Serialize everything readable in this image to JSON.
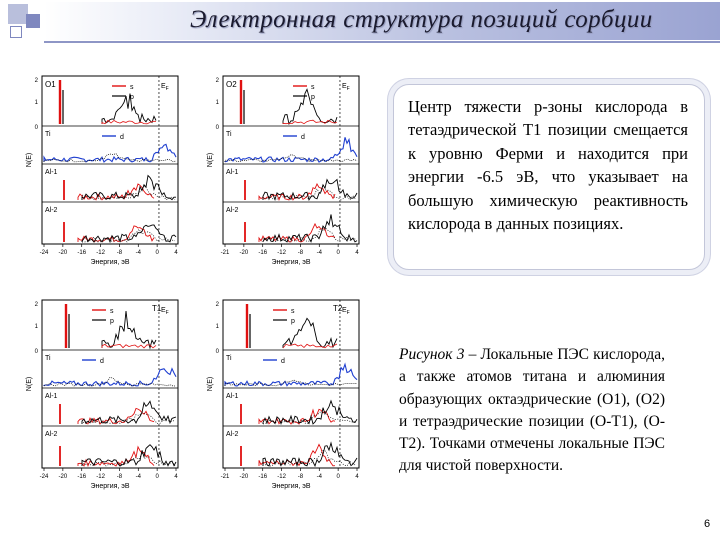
{
  "header": {
    "title": "Электронная структура позиций сорбции"
  },
  "panel_labels": {
    "dos_axis": "N(E)",
    "energy_axis": "Энергия, эВ",
    "legend_s": "s",
    "legend_p": "p",
    "legend_d": "d",
    "fermi": "E",
    "fermi_sub": "F",
    "ti": "Ti",
    "al1": "Al-1",
    "al2": "Al-2",
    "y_two": "2",
    "y_one": "1",
    "y_zero": "0",
    "xticks_a": [
      "-24",
      "-20",
      "-16",
      "-12",
      "-8",
      "-4",
      "0",
      "4"
    ],
    "xticks_b": [
      "-21",
      "-20",
      "-16",
      "-12",
      "-8",
      "-4",
      "0",
      "4"
    ]
  },
  "panels": [
    {
      "id": "o1",
      "site_label": "O1",
      "label_side": "left"
    },
    {
      "id": "o2",
      "site_label": "O2",
      "label_side": "left"
    },
    {
      "id": "t1",
      "site_label": "T1",
      "label_side": "right"
    },
    {
      "id": "t2",
      "site_label": "T2",
      "label_side": "right"
    }
  ],
  "info_box": {
    "text": "Центр тяжести p-зоны кислорода в тетаэдрической Т1 позиции смещается к уровню Ферми и находится при энергии -6.5 эВ, что указывает на большую химическую реактивность кислорода в данных позициях."
  },
  "caption": {
    "label": "Рисунок 3",
    "text": " – Локальные ПЭС кислорода, а также атомов титана и алюминия образующих октаэдрические (O1), (O2) и тетраэдрические позиции (O-T1), (O-T2). Точками отмечены локальные ПЭС для чистой поверхности."
  },
  "page": {
    "number": "6"
  },
  "colors": {
    "s_curve": "#e01010",
    "p_curve": "#000000",
    "d_curve": "#1f3fd0",
    "header_gradient": "#9aa3d2"
  }
}
